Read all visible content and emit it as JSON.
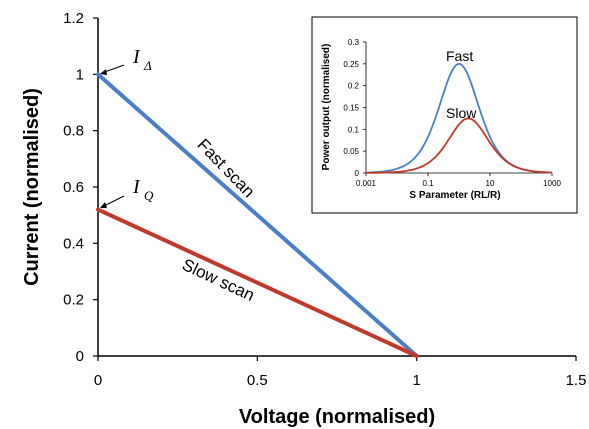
{
  "chart_data": [
    {
      "type": "line",
      "xlabel": "Voltage (normalised)",
      "ylabel": "Current (normalised)",
      "xlim": [
        0,
        1.5
      ],
      "ylim": [
        0,
        1.2
      ],
      "xticks": [
        "0",
        "0.5",
        "1",
        "1.5"
      ],
      "yticks": [
        "0",
        "0.2",
        "0.4",
        "0.6",
        "0.8",
        "1",
        "1.2"
      ],
      "grid": false,
      "series": [
        {
          "name": "Fast scan",
          "color": "#4a7fc8",
          "x": [
            0,
            1
          ],
          "y": [
            1.0,
            0.0
          ]
        },
        {
          "name": "Slow scan",
          "color": "#c0392b",
          "x": [
            0,
            1
          ],
          "y": [
            0.52,
            0.0
          ]
        }
      ],
      "annotations": {
        "i_delta": {
          "base": "I",
          "sub": "Δ"
        },
        "i_q": {
          "base": "I",
          "sub": "Q"
        }
      }
    },
    {
      "type": "line",
      "xlabel": "S Parameter (RL/R)",
      "ylabel": "Power output (normalised)",
      "xscale": "log",
      "xlim": [
        0.001,
        1000
      ],
      "ylim": [
        0,
        0.3
      ],
      "xticks": [
        "0.001",
        "0.1",
        "10",
        "1000"
      ],
      "yticks": [
        "0",
        "0.05",
        "0.1",
        "0.15",
        "0.2",
        "0.25",
        "0.3"
      ],
      "series": [
        {
          "name": "Fast",
          "color": "#4a7fc8",
          "peak": 0.25,
          "peak_at": 1.0
        },
        {
          "name": "Slow",
          "color": "#c0392b",
          "peak": 0.125,
          "peak_at": 2.0
        }
      ]
    }
  ]
}
